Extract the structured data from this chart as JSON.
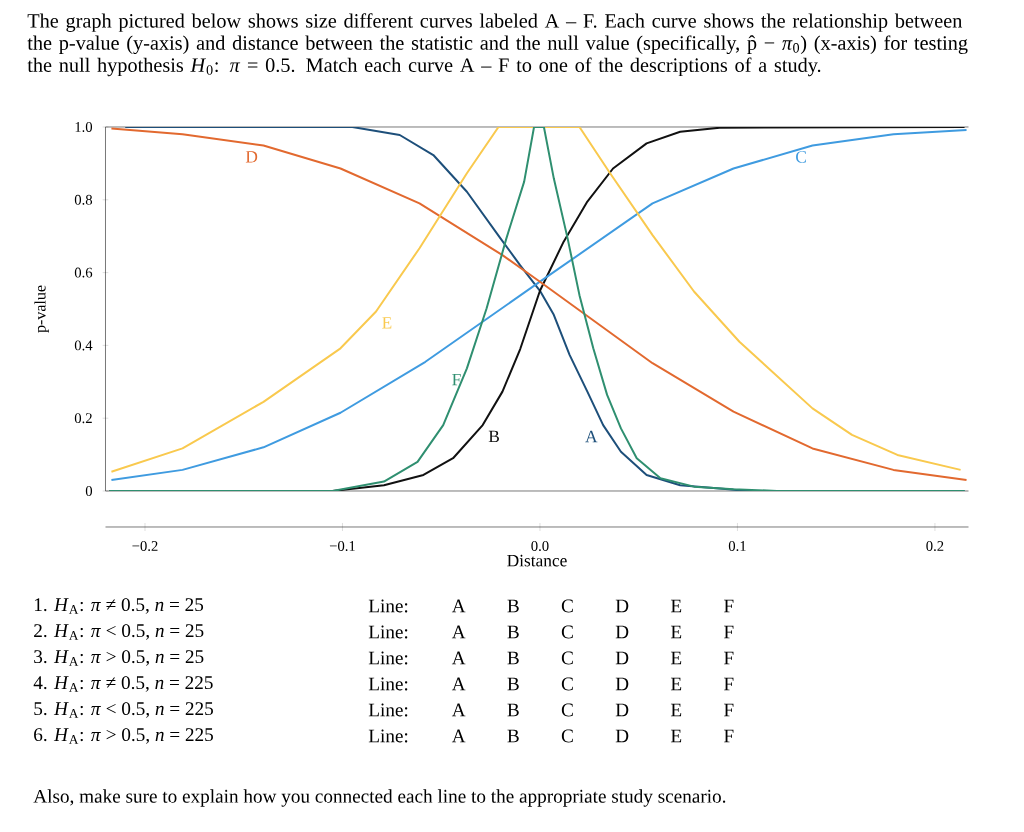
{
  "chart_data": {
    "type": "line",
    "title": "The graph pictured below shows size different curves labeled A – F.  Each curve shows the relationship between the p-value (y-axis) and distance between the statistic and the null value (specifically, p̂ − *π*$_{0}$) (x-axis) for testing the null hypothesis *H*$_{0}$: *π* = 0.5.  Match each curve A – F to one of the descriptions of a study.",
    "xlabel": "Distance",
    "ylabel": "p-value",
    "xlim": [
      -0.22,
      0.217
    ],
    "ylim": [
      0,
      1
    ],
    "xticks": [
      {
        "value": -0.2,
        "label": "−0.2"
      },
      {
        "value": -0.1,
        "label": "−0.1"
      },
      {
        "value": 0,
        "label": "0.0"
      },
      0.1,
      0.2
    ],
    "yticks": [
      0,
      0.2,
      0.4,
      0.6,
      0.8,
      {
        "value": 1,
        "label": "1.0"
      }
    ],
    "series": [
      {
        "name": "A",
        "color": "#1d4f7a",
        "x": [
          -0.21,
          -0.095,
          -0.071,
          -0.054,
          -0.037,
          -0.02,
          -0.01,
          0,
          0.007,
          0.015,
          0.024,
          0.032,
          0.041,
          0.054,
          0.071,
          0.091,
          0.105,
          0.215
        ],
        "values": [
          1,
          1,
          0.978,
          0.923,
          0.822,
          0.694,
          0.62,
          0.55,
          0.484,
          0.374,
          0.273,
          0.181,
          0.108,
          0.044,
          0.016,
          0.007,
          0,
          0
        ]
      },
      {
        "name": "B",
        "color": "#111111",
        "x": [
          -0.218,
          -0.105,
          -0.079,
          -0.059,
          -0.044,
          -0.029,
          -0.019,
          -0.01,
          0,
          0.012,
          0.024,
          0.037,
          0.054,
          0.071,
          0.091,
          0.215
        ],
        "values": [
          0,
          0,
          0.016,
          0.044,
          0.09,
          0.181,
          0.273,
          0.39,
          0.55,
          0.685,
          0.795,
          0.886,
          0.955,
          0.987,
          0.998,
          1
        ]
      },
      {
        "name": "C",
        "color": "#3f9be0",
        "x": [
          -0.217,
          -0.181,
          -0.14,
          -0.101,
          -0.058,
          0,
          0.057,
          0.098,
          0.138,
          0.179,
          0.216
        ],
        "values": [
          0.03,
          0.058,
          0.12,
          0.215,
          0.355,
          0.575,
          0.79,
          0.886,
          0.949,
          0.98,
          0.992
        ]
      },
      {
        "name": "D",
        "color": "#e2692f",
        "x": [
          -0.217,
          -0.181,
          -0.14,
          -0.101,
          -0.061,
          -0.019,
          0,
          0.057,
          0.098,
          0.138,
          0.179,
          0.216
        ],
        "values": [
          0.996,
          0.98,
          0.949,
          0.886,
          0.79,
          0.648,
          0.575,
          0.351,
          0.218,
          0.117,
          0.058,
          0.03
        ]
      },
      {
        "name": "E",
        "color": "#f9c94e",
        "x": [
          -0.217,
          -0.181,
          -0.14,
          -0.101,
          -0.083,
          -0.061,
          -0.037,
          -0.021,
          0.02,
          0.035,
          0.057,
          0.078,
          0.101,
          0.138,
          0.158,
          0.181,
          0.213
        ],
        "values": [
          0.053,
          0.117,
          0.245,
          0.392,
          0.493,
          0.667,
          0.873,
          1,
          1,
          0.877,
          0.703,
          0.548,
          0.41,
          0.227,
          0.154,
          0.099,
          0.058
        ]
      },
      {
        "name": "F",
        "color": "#2f8f70",
        "x": [
          -0.218,
          -0.105,
          -0.079,
          -0.062,
          -0.049,
          -0.037,
          -0.027,
          -0.017,
          -0.008,
          -0.003,
          0.002,
          0.007,
          0.014,
          0.02,
          0.027,
          0.034,
          0.041,
          0.049,
          0.061,
          0.078,
          0.098,
          0.12,
          0.215
        ],
        "values": [
          0,
          0,
          0.026,
          0.08,
          0.181,
          0.337,
          0.502,
          0.694,
          0.85,
          1,
          1,
          0.859,
          0.694,
          0.538,
          0.392,
          0.264,
          0.172,
          0.09,
          0.035,
          0.012,
          0.005,
          0,
          0
        ]
      }
    ],
    "annotations": [
      "1.  *H*$_{A}$: *π* ≠ 0.5, *n* = 25",
      "Line:  A B C D E F",
      "2.  *H*$_{A}$: *π* < 0.5, *n* = 25",
      "Line:  A B C D E F",
      "3.  *H*$_{A}$: *π* > 0.5, *n* = 25",
      "Line:  A B C D E F",
      "4.  *H*$_{A}$: *π* ≠ 0.5, *n* = 225",
      "Line:  A B C D E F",
      "5.  *H*$_{A}$: *π* < 0.5, *n* = 225",
      "Line:  A B C D E F",
      "6.  *H*$_{A}$: *π* > 0.5, *n* = 225",
      "Line:  A B C D E F",
      "Also, make sure to explain how you connected each line to the appropriate study scenario."
    ]
  }
}
